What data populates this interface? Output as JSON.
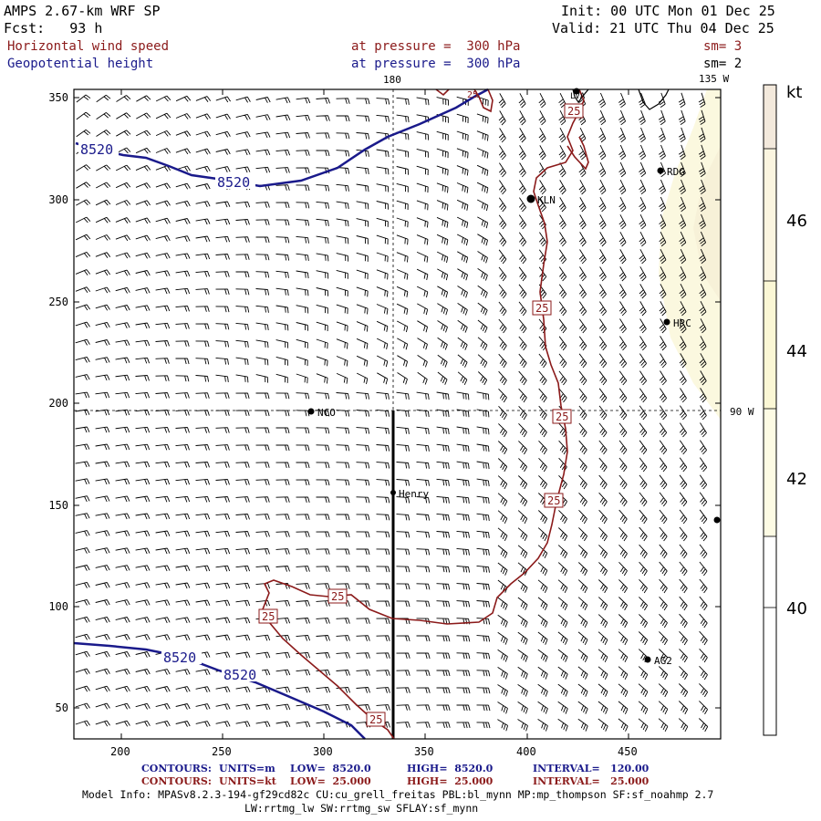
{
  "header": {
    "model": "AMPS 2.67-km WRF SP",
    "fcst": "Fcst:   93 h",
    "init": "Init: 00 UTC Mon 01 Dec 25",
    "valid": "Valid: 21 UTC Thu 04 Dec 25",
    "field1_name": "Horizontal wind speed",
    "field1_level": "at pressure =  300 hPa",
    "field1_sm": "sm= 3",
    "field2_name": "Geopotential height",
    "field2_level": "at pressure =  300 hPa",
    "field2_sm": "sm= 2"
  },
  "map": {
    "lon_top_180": "180",
    "lon_top_135w": "135 W",
    "lon_right_90w": "90 W",
    "x_ticks": [
      "200",
      "250",
      "300",
      "350",
      "400",
      "450"
    ],
    "y_ticks": [
      "350",
      "300",
      "250",
      "200",
      "150",
      "100",
      "50"
    ],
    "stations": [
      {
        "name": "LVA"
      },
      {
        "name": "RDG"
      },
      {
        "name": "KLN"
      },
      {
        "name": "HRC"
      },
      {
        "name": "NCO"
      },
      {
        "name": "Henry"
      },
      {
        "name": "AG2"
      }
    ],
    "height_labels": [
      "8520",
      "8520",
      "8520",
      "8520"
    ],
    "speed_labels": [
      "25",
      "25",
      "25",
      "25",
      "25",
      "25",
      "25",
      "25"
    ]
  },
  "colorbar": {
    "unit": "kt",
    "labels": [
      "46",
      "44",
      "42",
      "40"
    ],
    "colors": [
      "#f3e9dc",
      "#fbf5e0",
      "#fbf7d5",
      "#fdfbe4",
      "#ffffff"
    ]
  },
  "footer": {
    "c1_label": "CONTOURS:",
    "c1_units": "UNITS=m",
    "c1_low": "LOW=  8520.0",
    "c1_high": "HIGH=  8520.0",
    "c1_int": "INTERVAL=   120.00",
    "c2_label": "CONTOURS:",
    "c2_units": "UNITS=kt",
    "c2_low": "LOW=  25.000",
    "c2_high": "HIGH=  25.000",
    "c2_int": "INTERVAL=   25.000",
    "model_info1": "Model Info: MPASv8.2.3-194-gf29cd82c CU:cu_grell_freitas PBL:bl_mynn MP:mp_thompson SF:sf_noahmp 2.7",
    "model_info2": "LW:rrtmg_lw SW:rrtmg_sw SFLAY:sf_mynn"
  },
  "colors": {
    "height_contour": "#1a1a8b",
    "speed_contour": "#8b1a1a",
    "barb": "#000000"
  }
}
